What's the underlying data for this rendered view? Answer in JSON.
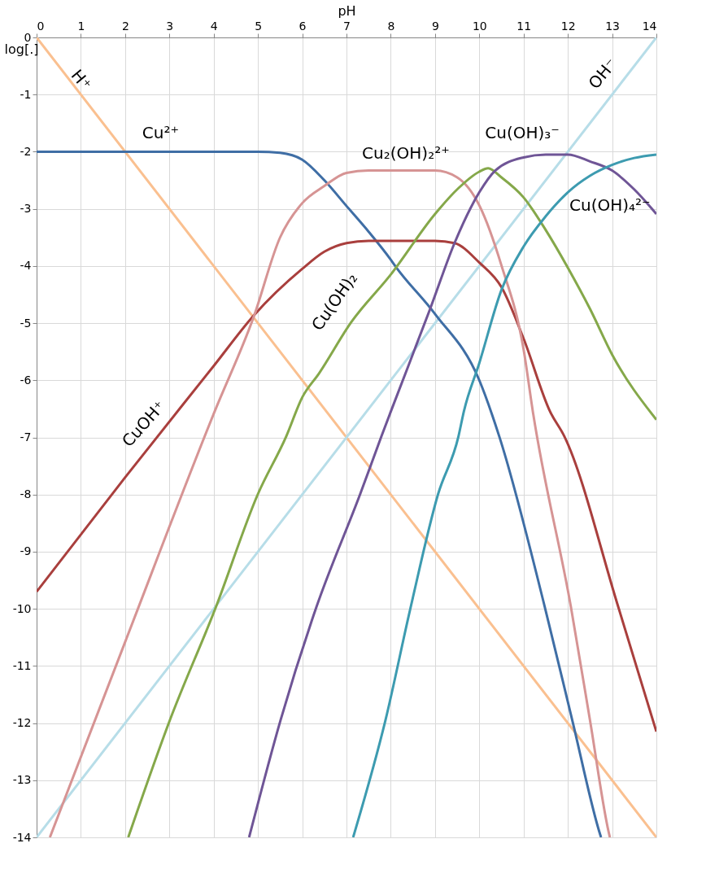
{
  "chart_data": {
    "type": "line",
    "xlabel": "pH",
    "ylabel": "log[.]",
    "xlim": [
      0,
      14
    ],
    "xticks": [
      0,
      1,
      2,
      3,
      4,
      5,
      6,
      7,
      8,
      9,
      10,
      11,
      12,
      13,
      14
    ],
    "ylim": [
      -14,
      0
    ],
    "yticks": [
      0,
      -1,
      -2,
      -3,
      -4,
      -5,
      -6,
      -7,
      -8,
      -9,
      -10,
      -11,
      -12,
      -13,
      -14
    ],
    "grid": true,
    "marker": "none",
    "line_style": "solid",
    "series": [
      {
        "name": "H⁺",
        "color": "#fac090",
        "x": [
          0,
          14
        ],
        "values": [
          0,
          -14
        ]
      },
      {
        "name": "OH⁻",
        "color": "#b7dde8",
        "x": [
          0,
          14
        ],
        "values": [
          -14,
          0
        ]
      },
      {
        "name": "Cu²⁺",
        "color": "#3f6ea5",
        "x": [
          0,
          5,
          5.5,
          6,
          6.5,
          7,
          7.5,
          8,
          8.12,
          9,
          10,
          10.45,
          11.48,
          12.1,
          12.71,
          12.75
        ],
        "values": [
          -2,
          -2,
          -2.02,
          -2.14,
          -2.5,
          -2.95,
          -3.4,
          -3.89,
          -4.02,
          -4.84,
          -6,
          -6.98,
          -9.97,
          -11.95,
          -13.9,
          -14
        ]
      },
      {
        "name": "CuOH⁺",
        "color": "#a93f3d",
        "x": [
          0,
          2,
          4,
          4.9,
          6,
          6.5,
          7,
          7.5,
          9,
          9.44,
          10,
          10.5,
          11,
          11.6,
          11.92,
          13.14,
          14
        ],
        "values": [
          -9.7,
          -7.7,
          -5.75,
          -4.87,
          -4.05,
          -3.75,
          -3.6,
          -3.56,
          -3.56,
          -3.6,
          -3.94,
          -4.37,
          -5.27,
          -6.55,
          -6.98,
          -9.97,
          -12.15
        ]
      },
      {
        "name": "Cu₂(OH)₂²⁺",
        "color": "#d69494",
        "x": [
          0.3,
          2,
          4.02,
          4.9,
          5.5,
          6,
          6.5,
          7,
          7.5,
          9,
          9.5,
          10,
          10.5,
          11,
          11.21,
          12.07,
          12.5,
          12.92,
          12.95
        ],
        "values": [
          -14,
          -10.58,
          -6.55,
          -4.9,
          -3.5,
          -2.9,
          -2.6,
          -2.37,
          -2.33,
          -2.33,
          -2.45,
          -2.94,
          -3.99,
          -5.46,
          -6.55,
          -9.97,
          -11.95,
          -13.9,
          -14
        ]
      },
      {
        "name": "Cu(OH)₂",
        "color": "#85a84a",
        "x": [
          2.07,
          3.01,
          4.05,
          5.0,
          5.64,
          6.0,
          6.38,
          7.11,
          8,
          9,
          9.5,
          10,
          10.2,
          10.5,
          11,
          11.5,
          12,
          12.5,
          13,
          14
        ],
        "values": [
          -14,
          -11.95,
          -9.97,
          -7.99,
          -6.98,
          -6.3,
          -5.88,
          -4.98,
          -4.15,
          -3.09,
          -2.66,
          -2.35,
          -2.29,
          -2.45,
          -2.8,
          -3.37,
          -4.03,
          -4.75,
          -5.55,
          -6.69
        ]
      },
      {
        "name": "Cu(OH)₃⁻",
        "color": "#6f5596",
        "x": [
          4.8,
          5.51,
          6.32,
          7.31,
          7.79,
          8.0,
          8.89,
          9.44,
          10,
          10.36,
          11,
          11.5,
          12,
          12.5,
          13,
          13.5,
          14
        ],
        "values": [
          -14,
          -11.95,
          -9.97,
          -7.99,
          -6.98,
          -6.55,
          -4.75,
          -3.6,
          -2.71,
          -2.33,
          -2.1,
          -2.05,
          -2.05,
          -2.17,
          -2.33,
          -2.66,
          -3.09
        ]
      },
      {
        "name": "Cu(OH)₄²⁻",
        "color": "#3d9bb0",
        "x": [
          7.15,
          7.88,
          8.45,
          9.07,
          9.53,
          9.65,
          10,
          10.5,
          11,
          11.5,
          12,
          12.5,
          13,
          13.5,
          14
        ],
        "values": [
          -14,
          -11.95,
          -9.97,
          -7.99,
          -6.98,
          -6.55,
          -5.7,
          -4.42,
          -3.66,
          -3.13,
          -2.71,
          -2.42,
          -2.23,
          -2.11,
          -2.05
        ]
      }
    ]
  }
}
